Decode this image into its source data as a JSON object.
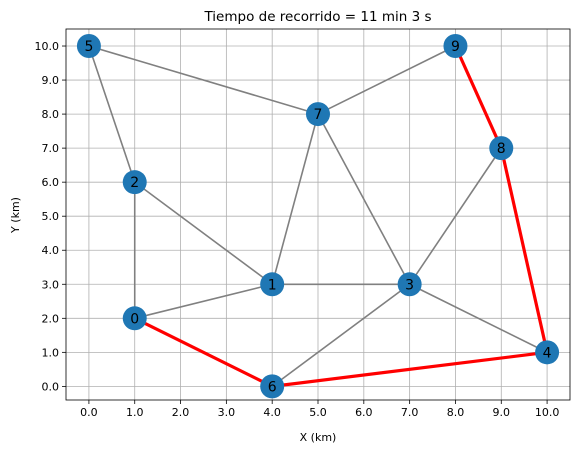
{
  "chart_data": {
    "type": "network-graph",
    "title": "Tiempo de recorrido = 11 min 3 s",
    "xlabel": "X (km)",
    "ylabel": "Y (km)",
    "xlim": [
      -0.5,
      10.5
    ],
    "ylim": [
      -0.4,
      10.5
    ],
    "x_ticks": [
      0,
      1,
      2,
      3,
      4,
      5,
      6,
      7,
      8,
      9,
      10
    ],
    "x_tick_labels": [
      "0.0",
      "1.0",
      "2.0",
      "3.0",
      "4.0",
      "5.0",
      "6.0",
      "7.0",
      "8.0",
      "9.0",
      "10.0"
    ],
    "y_ticks": [
      0,
      1,
      2,
      3,
      4,
      5,
      6,
      7,
      8,
      9,
      10
    ],
    "y_tick_labels": [
      "0.0",
      "1.0",
      "2.0",
      "3.0",
      "4.0",
      "5.0",
      "6.0",
      "7.0",
      "8.0",
      "9.0",
      "10.0"
    ],
    "grid": true,
    "colors": {
      "node": "#1f77b4",
      "edge": "#808080",
      "route": "#ff0000",
      "grid": "#b0b0b0"
    },
    "nodes": [
      {
        "id": "0",
        "x": 1,
        "y": 2
      },
      {
        "id": "1",
        "x": 4,
        "y": 3
      },
      {
        "id": "2",
        "x": 1,
        "y": 6
      },
      {
        "id": "3",
        "x": 7,
        "y": 3
      },
      {
        "id": "4",
        "x": 10,
        "y": 1
      },
      {
        "id": "5",
        "x": 0,
        "y": 10
      },
      {
        "id": "6",
        "x": 4,
        "y": 0
      },
      {
        "id": "7",
        "x": 5,
        "y": 8
      },
      {
        "id": "8",
        "x": 9,
        "y": 7
      },
      {
        "id": "9",
        "x": 8,
        "y": 10
      }
    ],
    "edges": [
      [
        "5",
        "2"
      ],
      [
        "5",
        "7"
      ],
      [
        "7",
        "9"
      ],
      [
        "2",
        "0"
      ],
      [
        "2",
        "1"
      ],
      [
        "7",
        "1"
      ],
      [
        "7",
        "3"
      ],
      [
        "8",
        "3"
      ],
      [
        "1",
        "0"
      ],
      [
        "1",
        "3"
      ],
      [
        "3",
        "6"
      ],
      [
        "3",
        "4"
      ]
    ],
    "route": [
      [
        "0",
        "6"
      ],
      [
        "6",
        "4"
      ],
      [
        "4",
        "8"
      ],
      [
        "8",
        "9"
      ]
    ]
  }
}
